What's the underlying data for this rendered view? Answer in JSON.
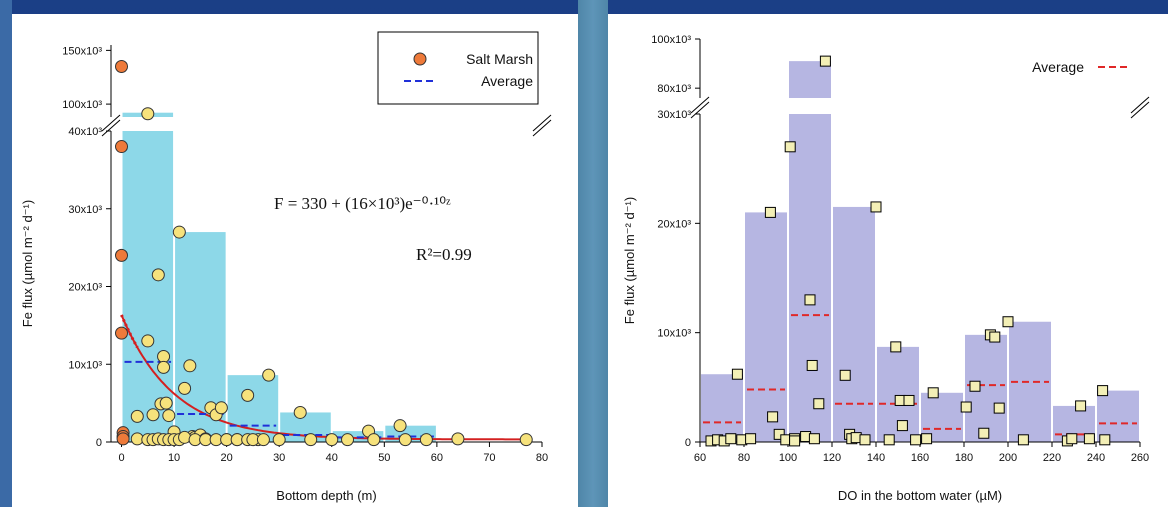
{
  "chart_data": [
    {
      "type": "bar",
      "ylabel": "Fe flux (µmol m⁻² d⁻¹)",
      "xlabel": "Bottom depth (m)",
      "x_ticks": [
        "0",
        "10",
        "20",
        "30",
        "40",
        "50",
        "60",
        "70",
        "80"
      ],
      "y_ticks_lower": [
        "0",
        "10x10³",
        "20x10³",
        "30x10³",
        "40x10³"
      ],
      "y_ticks_upper": [
        "100x10³",
        "150x10³"
      ],
      "xlim": [
        -2,
        80
      ],
      "ylim_lower": [
        0,
        40000
      ],
      "ylim_upper": [
        88000,
        155000
      ],
      "axis_break": true,
      "bar_color": "#8dd8e8",
      "bars": [
        {
          "x0": 0,
          "x1": 10,
          "value": 92000
        },
        {
          "x0": 10,
          "x1": 20,
          "value": 27000
        },
        {
          "x0": 20,
          "x1": 30,
          "value": 8600
        },
        {
          "x0": 30,
          "x1": 40,
          "value": 3800
        },
        {
          "x0": 40,
          "x1": 50,
          "value": 1400
        },
        {
          "x0": 50,
          "x1": 60,
          "value": 2100
        }
      ],
      "series": [
        {
          "name": "Salt Marsh",
          "marker": "circle",
          "color": "#ee7a3a",
          "x": [
            0,
            0,
            0,
            0,
            0.3,
            0.3,
            0.3
          ],
          "y": [
            135000,
            38000,
            24000,
            14000,
            1200,
            700,
            400
          ]
        },
        {
          "marker": "circle",
          "color": "#f6e27c",
          "x": [
            5,
            5,
            3,
            6,
            7,
            7.5,
            8,
            8,
            8.5,
            9,
            10,
            11,
            12,
            13,
            13.5,
            14,
            15,
            16,
            17,
            18,
            19,
            20,
            22,
            24,
            26,
            28,
            30,
            34,
            36,
            40,
            43,
            47,
            48,
            53,
            54,
            58,
            64,
            77,
            3,
            5,
            6,
            7,
            8,
            9,
            10,
            11,
            12,
            14,
            16,
            18,
            20,
            22,
            24,
            25,
            27
          ],
          "y": [
            91000,
            13000,
            3300,
            3500,
            21500,
            4900,
            11000,
            9600,
            5000,
            3400,
            1300,
            27000,
            6900,
            9800,
            700,
            600,
            900,
            400,
            4400,
            3500,
            4400,
            300,
            300,
            6000,
            300,
            8600,
            300,
            3800,
            300,
            300,
            300,
            1400,
            300,
            2100,
            300,
            300,
            400,
            300,
            400,
            300,
            300,
            400,
            300,
            300,
            300,
            300,
            600,
            300,
            300,
            300,
            300,
            300,
            300,
            300,
            300
          ]
        },
        {
          "name": "Average",
          "type": "line",
          "dashed": true,
          "color": "#2030d8",
          "segments": [
            {
              "x0": 0,
              "x1": 10,
              "y": 10300
            },
            {
              "x0": 10,
              "x1": 20,
              "y": 3600
            },
            {
              "x0": 20,
              "x1": 30,
              "y": 2100
            },
            {
              "x0": 30,
              "x1": 40,
              "y": 900
            },
            {
              "x0": 40,
              "x1": 50,
              "y": 600
            },
            {
              "x0": 50,
              "x1": 60,
              "y": 700
            }
          ]
        }
      ],
      "fit": {
        "color": "#d42020",
        "a": 330,
        "b": 16000,
        "k": 0.1,
        "x_end": 78
      },
      "annotations": {
        "equation": "F = 330 + (16×10³)e⁻⁰·¹⁰ᶻ",
        "r2": "R²=0.99"
      },
      "legend": {
        "position": "top-right",
        "entries": [
          "Salt Marsh",
          "Average"
        ]
      }
    },
    {
      "type": "bar",
      "ylabel": "Fe flux (µmol m⁻² d⁻¹)",
      "xlabel": "DO in the bottom water (µM)",
      "x_ticks": [
        "60",
        "80",
        "100",
        "120",
        "140",
        "160",
        "180",
        "200",
        "220",
        "240",
        "260"
      ],
      "y_ticks_lower": [
        "0",
        "10x10³",
        "20x10³",
        "30x10³"
      ],
      "y_ticks_upper": [
        "80x10³",
        "100x10³"
      ],
      "xlim": [
        60,
        260
      ],
      "ylim_lower": [
        0,
        30000
      ],
      "ylim_upper": [
        76000,
        100000
      ],
      "axis_break": true,
      "bar_color": "#b6b6e2",
      "bars": [
        {
          "x0": 60,
          "x1": 80,
          "value": 6200
        },
        {
          "x0": 80,
          "x1": 100,
          "value": 21000
        },
        {
          "x0": 100,
          "x1": 120,
          "value": 91000
        },
        {
          "x0": 120,
          "x1": 140,
          "value": 21500
        },
        {
          "x0": 140,
          "x1": 160,
          "value": 8700
        },
        {
          "x0": 160,
          "x1": 180,
          "value": 4500
        },
        {
          "x0": 180,
          "x1": 200,
          "value": 9800
        },
        {
          "x0": 200,
          "x1": 220,
          "value": 11000
        },
        {
          "x0": 220,
          "x1": 240,
          "value": 3300
        },
        {
          "x0": 240,
          "x1": 260,
          "value": 4700
        }
      ],
      "series": [
        {
          "marker": "square",
          "color": "#f3efb6",
          "x": [
            65,
            68,
            71,
            74,
            77,
            79,
            83,
            92,
            93,
            96,
            99,
            101,
            103,
            103,
            108,
            110,
            111,
            112,
            114,
            117,
            126,
            128,
            129,
            131,
            135,
            140,
            146,
            149,
            151,
            152,
            155,
            158,
            163,
            166,
            181,
            185,
            189,
            192,
            194,
            196,
            200,
            207,
            227,
            229,
            233,
            237,
            243,
            244
          ],
          "y": [
            100,
            200,
            100,
            300,
            6200,
            200,
            300,
            21000,
            2300,
            700,
            200,
            27000,
            300,
            100,
            500,
            13000,
            7000,
            300,
            3500,
            91000,
            6100,
            700,
            300,
            400,
            200,
            21500,
            200,
            8700,
            3800,
            1500,
            3800,
            200,
            300,
            4500,
            3200,
            5100,
            800,
            9800,
            9600,
            3100,
            11000,
            200,
            100,
            300,
            3300,
            300,
            4700,
            200
          ]
        },
        {
          "name": "Average",
          "type": "line",
          "dashed": true,
          "color": "#e02828",
          "segments": [
            {
              "x0": 60,
              "x1": 80,
              "y": 1800
            },
            {
              "x0": 80,
              "x1": 100,
              "y": 4800
            },
            {
              "x0": 100,
              "x1": 120,
              "y": 11600
            },
            {
              "x0": 120,
              "x1": 140,
              "y": 3500
            },
            {
              "x0": 140,
              "x1": 160,
              "y": 3500
            },
            {
              "x0": 160,
              "x1": 180,
              "y": 1200
            },
            {
              "x0": 180,
              "x1": 200,
              "y": 5200
            },
            {
              "x0": 200,
              "x1": 220,
              "y": 5500
            },
            {
              "x0": 220,
              "x1": 240,
              "y": 700
            },
            {
              "x0": 240,
              "x1": 260,
              "y": 1700
            }
          ]
        }
      ],
      "legend": {
        "position": "top-right",
        "entries": [
          "Average"
        ]
      }
    }
  ]
}
